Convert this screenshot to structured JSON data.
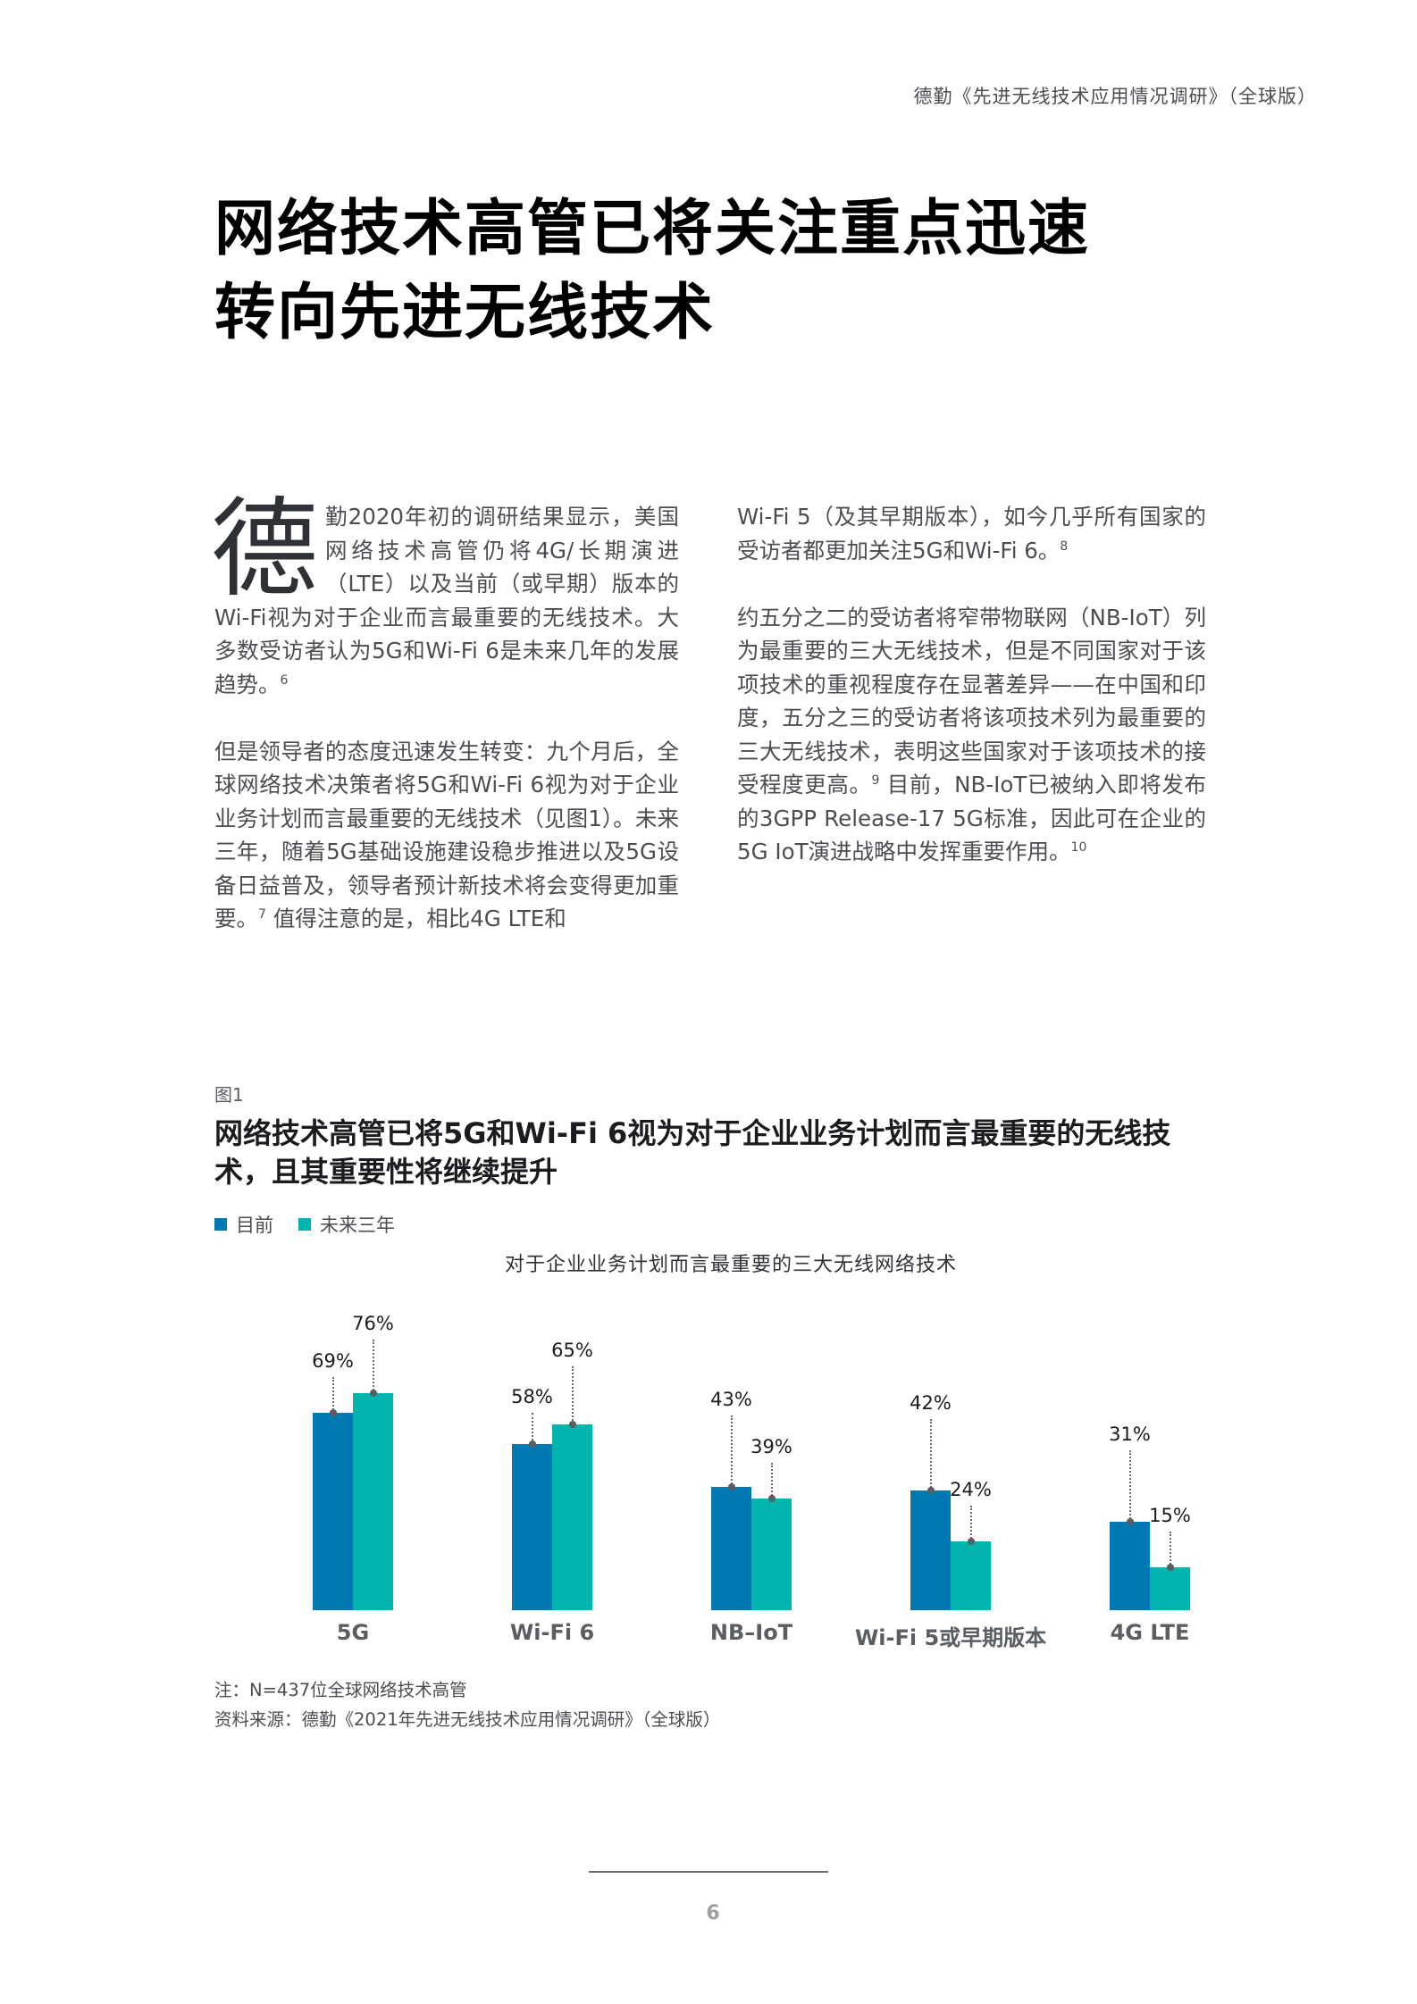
{
  "header": {
    "running_title": "德勤《先进无线技术应用情况调研》（全球版）"
  },
  "page_title": {
    "line1": "网络技术高管已将关注重点迅速",
    "line2": "转向先进无线技术"
  },
  "body": {
    "dropcap": "德",
    "left_column": {
      "para1": "勤2020年初的调研结果显示，美国网络技术高管仍将4G/长期演进（LTE）以及当前（或早期）版本的Wi-Fi视为对于企业而言最重要的无线技术。大多数受访者认为5G和Wi-Fi 6是未来几年的发展趋势。",
      "para1_note": "6",
      "para2_a": "但是领导者的态度迅速发生转变：九个月后，全球网络技术决策者将5G和Wi-Fi 6视为对于企业业务计划而言最重要的无线技术（见图1）。未来三年，随着5G基础设施建设稳步推进以及5G设备日益普及，领导者预计新技术将会变得更加重要。",
      "para2_note": "7",
      "para2_b": " 值得注意的是，相比4G LTE和"
    },
    "right_column": {
      "para1": "Wi-Fi 5（及其早期版本），如今几乎所有国家的受访者都更加关注5G和Wi-Fi 6。",
      "para1_note": "8",
      "para2_a": "约五分之二的受访者将窄带物联网（NB-IoT）列为最重要的三大无线技术，但是不同国家对于该项技术的重视程度存在显著差异——在中国和印度，五分之三的受访者将该项技术列为最重要的三大无线技术，表明这些国家对于该项技术的接受程度更高。",
      "para2_note_a": "9",
      "para2_b": " 目前，NB-IoT已被纳入即将发布的3GPP Release-17 5G标准，因此可在企业的5G IoT演进战略中发挥重要作用。",
      "para2_note_b": "10"
    }
  },
  "figure": {
    "label": "图1",
    "title": "网络技术高管已将5G和Wi-Fi 6视为对于企业业务计划而言最重要的无线技术，且其重要性将继续提升",
    "legend": [
      {
        "label": "目前",
        "color": "#0079B3"
      },
      {
        "label": "未来三年",
        "color": "#00B5AD"
      }
    ],
    "subtitle": "对于企业业务计划而言最重要的三大无线网络技术",
    "note": "注：N=437位全球网络技术高管",
    "source": "资料来源：德勤《2021年先进无线技术应用情况调研》（全球版）"
  },
  "chart_data": {
    "type": "bar",
    "title": "对于企业业务计划而言最重要的三大无线网络技术",
    "categories": [
      "5G",
      "Wi-Fi 6",
      "NB–IoT",
      "Wi-Fi 5或早期版本",
      "4G LTE"
    ],
    "series": [
      {
        "name": "目前",
        "color": "#0079B3",
        "values": [
          69,
          58,
          43,
          42,
          31
        ]
      },
      {
        "name": "未来三年",
        "color": "#00B5AD",
        "values": [
          76,
          65,
          39,
          24,
          15
        ]
      }
    ],
    "value_suffix": "%",
    "xlabel": "",
    "ylabel": "",
    "ylim": [
      0,
      100
    ],
    "grid": false,
    "legend_position": "top-left"
  },
  "footer": {
    "page_number": "6"
  }
}
